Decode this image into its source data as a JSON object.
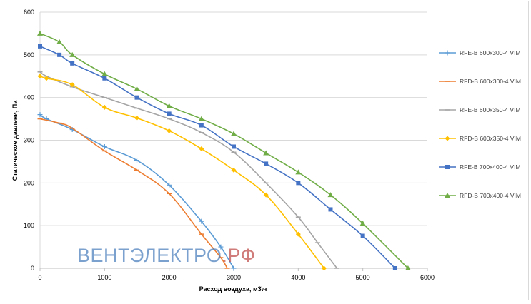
{
  "chart_data": {
    "type": "line",
    "title": "",
    "xlabel": "Расход воздуха, м3\\ч",
    "ylabel": "Статическое давлени, Па",
    "xlim": [
      0,
      6000
    ],
    "ylim": [
      0,
      600
    ],
    "xticks": [
      0,
      1000,
      2000,
      3000,
      4000,
      5000,
      6000
    ],
    "yticks": [
      0,
      100,
      200,
      300,
      400,
      500,
      600
    ],
    "xtick_labels": [
      "0",
      "1000",
      "2000",
      "3000",
      "4000",
      "5000",
      "6000"
    ],
    "ytick_labels": [
      "0",
      "100",
      "200",
      "300",
      "400",
      "500",
      "600"
    ],
    "grid": "horizontal",
    "legend_position": "right",
    "series": [
      {
        "name": "RFE-B 600x300-4 VIM",
        "color": "#5B9BD5",
        "marker": "plus",
        "points": [
          [
            0,
            360
          ],
          [
            100,
            350
          ],
          [
            500,
            325
          ],
          [
            1000,
            285
          ],
          [
            1500,
            253
          ],
          [
            2000,
            195
          ],
          [
            2500,
            110
          ],
          [
            2800,
            50
          ],
          [
            3000,
            0
          ]
        ]
      },
      {
        "name": "RFD-B 600x300-4 VIM",
        "color": "#ED7D31",
        "marker": "dash",
        "points": [
          [
            0,
            350
          ],
          [
            300,
            340
          ],
          [
            500,
            328
          ],
          [
            1000,
            275
          ],
          [
            1500,
            230
          ],
          [
            2000,
            175
          ],
          [
            2500,
            80
          ],
          [
            2800,
            25
          ],
          [
            2900,
            0
          ]
        ]
      },
      {
        "name": "RFE-B 600x350-4 VIM",
        "color": "#A5A5A5",
        "marker": "dash",
        "points": [
          [
            0,
            460
          ],
          [
            100,
            450
          ],
          [
            500,
            425
          ],
          [
            1000,
            400
          ],
          [
            1500,
            375
          ],
          [
            2000,
            350
          ],
          [
            2500,
            318
          ],
          [
            3000,
            272
          ],
          [
            3500,
            200
          ],
          [
            4000,
            120
          ],
          [
            4300,
            60
          ],
          [
            4600,
            0
          ]
        ]
      },
      {
        "name": "RFD-B 600x350-4 VIM",
        "color": "#FFC000",
        "marker": "diamond",
        "points": [
          [
            0,
            450
          ],
          [
            100,
            445
          ],
          [
            500,
            430
          ],
          [
            1000,
            377
          ],
          [
            1500,
            352
          ],
          [
            2000,
            322
          ],
          [
            2500,
            280
          ],
          [
            3000,
            230
          ],
          [
            3500,
            172
          ],
          [
            4000,
            80
          ],
          [
            4400,
            0
          ]
        ]
      },
      {
        "name": "RFE-B 700x400-4 VIM",
        "color": "#4472C4",
        "marker": "square",
        "points": [
          [
            0,
            520
          ],
          [
            300,
            500
          ],
          [
            500,
            480
          ],
          [
            1000,
            445
          ],
          [
            1500,
            400
          ],
          [
            2000,
            362
          ],
          [
            2500,
            335
          ],
          [
            3000,
            285
          ],
          [
            3500,
            245
          ],
          [
            4000,
            200
          ],
          [
            4500,
            138
          ],
          [
            5000,
            76
          ],
          [
            5500,
            0
          ]
        ]
      },
      {
        "name": "RFD-B 700x400-4 VIM",
        "color": "#70AD47",
        "marker": "triangle",
        "points": [
          [
            0,
            550
          ],
          [
            300,
            530
          ],
          [
            500,
            500
          ],
          [
            1000,
            455
          ],
          [
            1500,
            420
          ],
          [
            2000,
            380
          ],
          [
            2500,
            350
          ],
          [
            3000,
            315
          ],
          [
            3500,
            270
          ],
          [
            4000,
            225
          ],
          [
            4500,
            172
          ],
          [
            5000,
            105
          ],
          [
            5700,
            0
          ]
        ]
      }
    ]
  },
  "watermark": {
    "part1": "ВЕНТЭЛЕКТРО",
    "part2": ".РФ",
    "color1": "#4F81BD",
    "color2": "#C0504D"
  }
}
